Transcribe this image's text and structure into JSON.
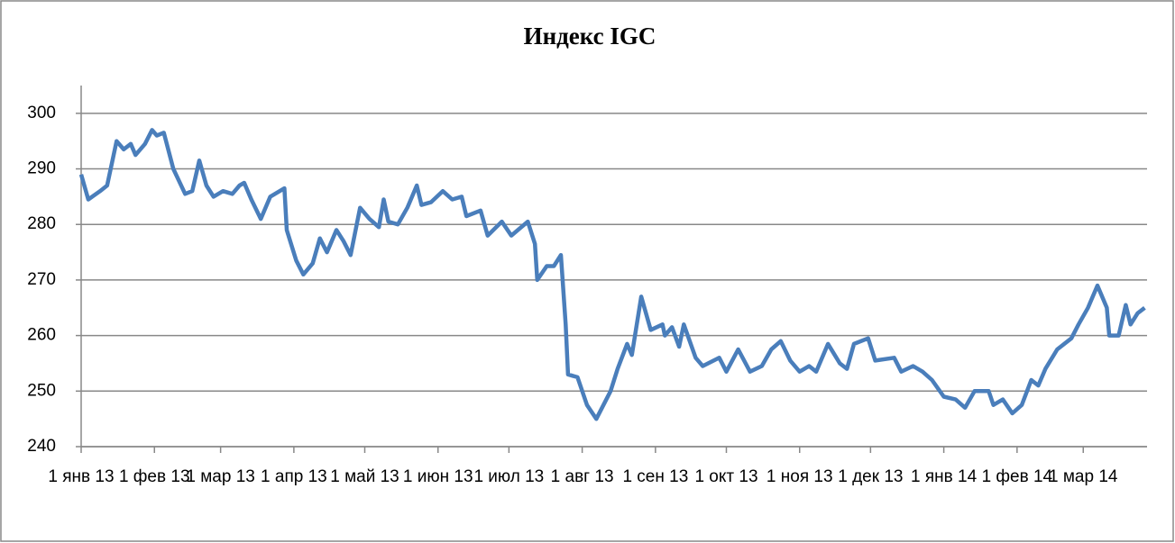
{
  "chart_data": {
    "type": "line",
    "title": "Индекс IGC",
    "x": [
      "2013-01-01",
      "2013-01-04",
      "2013-01-09",
      "2013-01-12",
      "2013-01-16",
      "2013-01-19",
      "2013-01-22",
      "2013-01-24",
      "2013-01-28",
      "2013-01-31",
      "2013-02-02",
      "2013-02-05",
      "2013-02-09",
      "2013-02-14",
      "2013-02-17",
      "2013-02-20",
      "2013-02-23",
      "2013-02-26",
      "2013-03-02",
      "2013-03-06",
      "2013-03-09",
      "2013-03-11",
      "2013-03-14",
      "2013-03-18",
      "2013-03-22",
      "2013-03-28",
      "2013-03-29",
      "2013-04-02",
      "2013-04-05",
      "2013-04-09",
      "2013-04-12",
      "2013-04-15",
      "2013-04-19",
      "2013-04-22",
      "2013-04-25",
      "2013-04-29",
      "2013-05-03",
      "2013-05-07",
      "2013-05-09",
      "2013-05-11",
      "2013-05-15",
      "2013-05-19",
      "2013-05-23",
      "2013-05-25",
      "2013-05-29",
      "2013-06-03",
      "2013-06-07",
      "2013-06-11",
      "2013-06-13",
      "2013-06-19",
      "2013-06-22",
      "2013-06-28",
      "2013-07-02",
      "2013-07-09",
      "2013-07-12",
      "2013-07-13",
      "2013-07-17",
      "2013-07-20",
      "2013-07-23",
      "2013-07-25",
      "2013-07-26",
      "2013-07-30",
      "2013-08-03",
      "2013-08-07",
      "2013-08-13",
      "2013-08-16",
      "2013-08-20",
      "2013-08-22",
      "2013-08-26",
      "2013-08-30",
      "2013-09-04",
      "2013-09-05",
      "2013-09-08",
      "2013-09-11",
      "2013-09-13",
      "2013-09-18",
      "2013-09-21",
      "2013-09-28",
      "2013-10-01",
      "2013-10-06",
      "2013-10-11",
      "2013-10-16",
      "2013-10-20",
      "2013-10-24",
      "2013-10-28",
      "2013-11-01",
      "2013-11-05",
      "2013-11-08",
      "2013-11-13",
      "2013-11-18",
      "2013-11-21",
      "2013-11-24",
      "2013-11-30",
      "2013-12-03",
      "2013-12-11",
      "2013-12-14",
      "2013-12-19",
      "2013-12-23",
      "2013-12-27",
      "2014-01-01",
      "2014-01-06",
      "2014-01-10",
      "2014-01-14",
      "2014-01-20",
      "2014-01-22",
      "2014-01-26",
      "2014-01-30",
      "2014-02-03",
      "2014-02-07",
      "2014-02-10",
      "2014-02-13",
      "2014-02-18",
      "2014-02-24",
      "2014-02-27",
      "2014-03-03",
      "2014-03-07",
      "2014-03-11",
      "2014-03-12",
      "2014-03-16",
      "2014-03-19",
      "2014-03-21",
      "2014-03-24",
      "2014-03-27"
    ],
    "series": [
      {
        "name": "Индекс IGC",
        "color": "#4a7ebb",
        "values": [
          289,
          284.5,
          286,
          287,
          295,
          293.5,
          294.5,
          292.5,
          294.5,
          297,
          296,
          296.5,
          290,
          285.5,
          286,
          291.5,
          287,
          285,
          286,
          285.5,
          287,
          287.5,
          284.5,
          281,
          285,
          286.5,
          279,
          273.5,
          271,
          273,
          277.5,
          275,
          279,
          277,
          274.5,
          283,
          281,
          279.5,
          284.5,
          280.5,
          280,
          283,
          287,
          283.5,
          284,
          286,
          284.5,
          285,
          281.5,
          282.5,
          278,
          280.5,
          278,
          280.5,
          276.5,
          270,
          272.5,
          272.5,
          274.5,
          262,
          253,
          252.5,
          247.5,
          245,
          250,
          254,
          258.5,
          256.5,
          267,
          261,
          262,
          260,
          261.5,
          258,
          262,
          256,
          254.5,
          256,
          253.5,
          257.5,
          253.5,
          254.5,
          257.5,
          259,
          255.5,
          253.5,
          254.5,
          253.5,
          258.5,
          255,
          254,
          258.5,
          259.5,
          255.5,
          256,
          253.5,
          254.5,
          253.5,
          252,
          249,
          248.5,
          247,
          250,
          250,
          247.5,
          248.5,
          246,
          247.5,
          252,
          251,
          254,
          257.5,
          259.5,
          262,
          265,
          269,
          265,
          260,
          260,
          265.5,
          262,
          264,
          265
        ]
      }
    ],
    "xlim": [
      "2013-01-01",
      "2014-03-28"
    ],
    "xticks": [
      {
        "value": "2013-01-01",
        "label": "1 янв 13"
      },
      {
        "value": "2013-02-01",
        "label": "1 фев 13"
      },
      {
        "value": "2013-03-01",
        "label": "1 мар 13"
      },
      {
        "value": "2013-04-01",
        "label": "1 апр 13"
      },
      {
        "value": "2013-05-01",
        "label": "1 май 13"
      },
      {
        "value": "2013-06-01",
        "label": "1 июн 13"
      },
      {
        "value": "2013-07-01",
        "label": "1 июл 13"
      },
      {
        "value": "2013-08-01",
        "label": "1 авг 13"
      },
      {
        "value": "2013-09-01",
        "label": "1 сен 13"
      },
      {
        "value": "2013-10-01",
        "label": "1 окт 13"
      },
      {
        "value": "2013-11-01",
        "label": "1 ноя 13"
      },
      {
        "value": "2013-12-01",
        "label": "1 дек 13"
      },
      {
        "value": "2014-01-01",
        "label": "1 янв 14"
      },
      {
        "value": "2014-02-01",
        "label": "1 фев 14"
      },
      {
        "value": "2014-03-01",
        "label": "1 мар 14"
      }
    ],
    "ylim": [
      240,
      305
    ],
    "yticks": [
      240,
      250,
      260,
      270,
      280,
      290,
      300
    ],
    "grid": true
  }
}
